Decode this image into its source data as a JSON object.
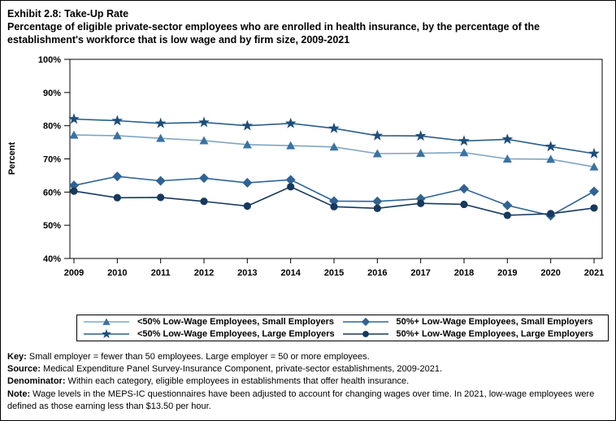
{
  "title": {
    "line1": "Exhibit 2.8: Take-Up Rate",
    "line2": "Percentage of eligible private-sector employees who are enrolled in health insurance, by the percentage of the establishment's workforce that is low wage and by firm size, 2009-2021"
  },
  "chart_data": {
    "type": "line",
    "title": "Exhibit 2.8: Take-Up Rate",
    "xlabel": "",
    "ylabel": "Percent",
    "ylim": [
      40,
      100
    ],
    "ytick_step": 10,
    "ytick_labels": [
      "40%",
      "50%",
      "60%",
      "70%",
      "80%",
      "90%",
      "100%"
    ],
    "grid": false,
    "legend_position": "bottom",
    "categories": [
      "2009",
      "2010",
      "2011",
      "2012",
      "2013",
      "2014",
      "2015",
      "2016",
      "2017",
      "2018",
      "2019",
      "2020",
      "2021"
    ],
    "series": [
      {
        "name": "<50% Low-Wage Employees, Small Employers",
        "marker": "triangle",
        "marker_color": "#3A72A2",
        "line_color": "#7EA6C3",
        "values": [
          77.2,
          77.0,
          76.2,
          75.5,
          74.3,
          74.0,
          73.6,
          71.6,
          71.7,
          71.9,
          70.0,
          69.9,
          67.6
        ]
      },
      {
        "name": "<50% Low-Wage Employees, Large Employers",
        "marker": "star",
        "marker_color": "#1D4E7B",
        "line_color": "#2B5E88",
        "values": [
          82.0,
          81.5,
          80.7,
          81.0,
          80.0,
          80.7,
          79.2,
          77.0,
          76.9,
          75.4,
          75.9,
          73.7,
          71.6
        ]
      },
      {
        "name": "50%+ Low-Wage Employees, Small Employers",
        "marker": "diamond",
        "marker_color": "#2F6393",
        "line_color": "#2F6393",
        "values": [
          62.0,
          64.7,
          63.4,
          64.2,
          62.8,
          63.7,
          57.3,
          57.2,
          58.0,
          61.0,
          56.0,
          52.9,
          60.2
        ]
      },
      {
        "name": "50%+ Low-Wage Employees, Large Employers",
        "marker": "circle",
        "marker_color": "#16395D",
        "line_color": "#16395D",
        "values": [
          60.3,
          58.3,
          58.4,
          57.2,
          55.8,
          61.6,
          55.6,
          55.1,
          56.6,
          56.3,
          53.0,
          53.5,
          55.2
        ]
      }
    ]
  },
  "legend": {
    "display_order": [
      0,
      2,
      1,
      3
    ]
  },
  "notes": [
    {
      "label": "Key:",
      "text": " Small employer = fewer than 50 employees. Large employer = 50 or more employees."
    },
    {
      "label": "Source:",
      "text": " Medical Expenditure Panel Survey-Insurance Component, private-sector establishments, 2009-2021."
    },
    {
      "label": "Denominator:",
      "text": " Within each category, eligible employees in establishments that offer health insurance."
    },
    {
      "label": "Note:",
      "text": " Wage levels in the MEPS-IC questionnaires have been adjusted to account for changing wages over time. In 2021, low-wage employees were defined as those earning less than $13.50 per hour."
    }
  ]
}
